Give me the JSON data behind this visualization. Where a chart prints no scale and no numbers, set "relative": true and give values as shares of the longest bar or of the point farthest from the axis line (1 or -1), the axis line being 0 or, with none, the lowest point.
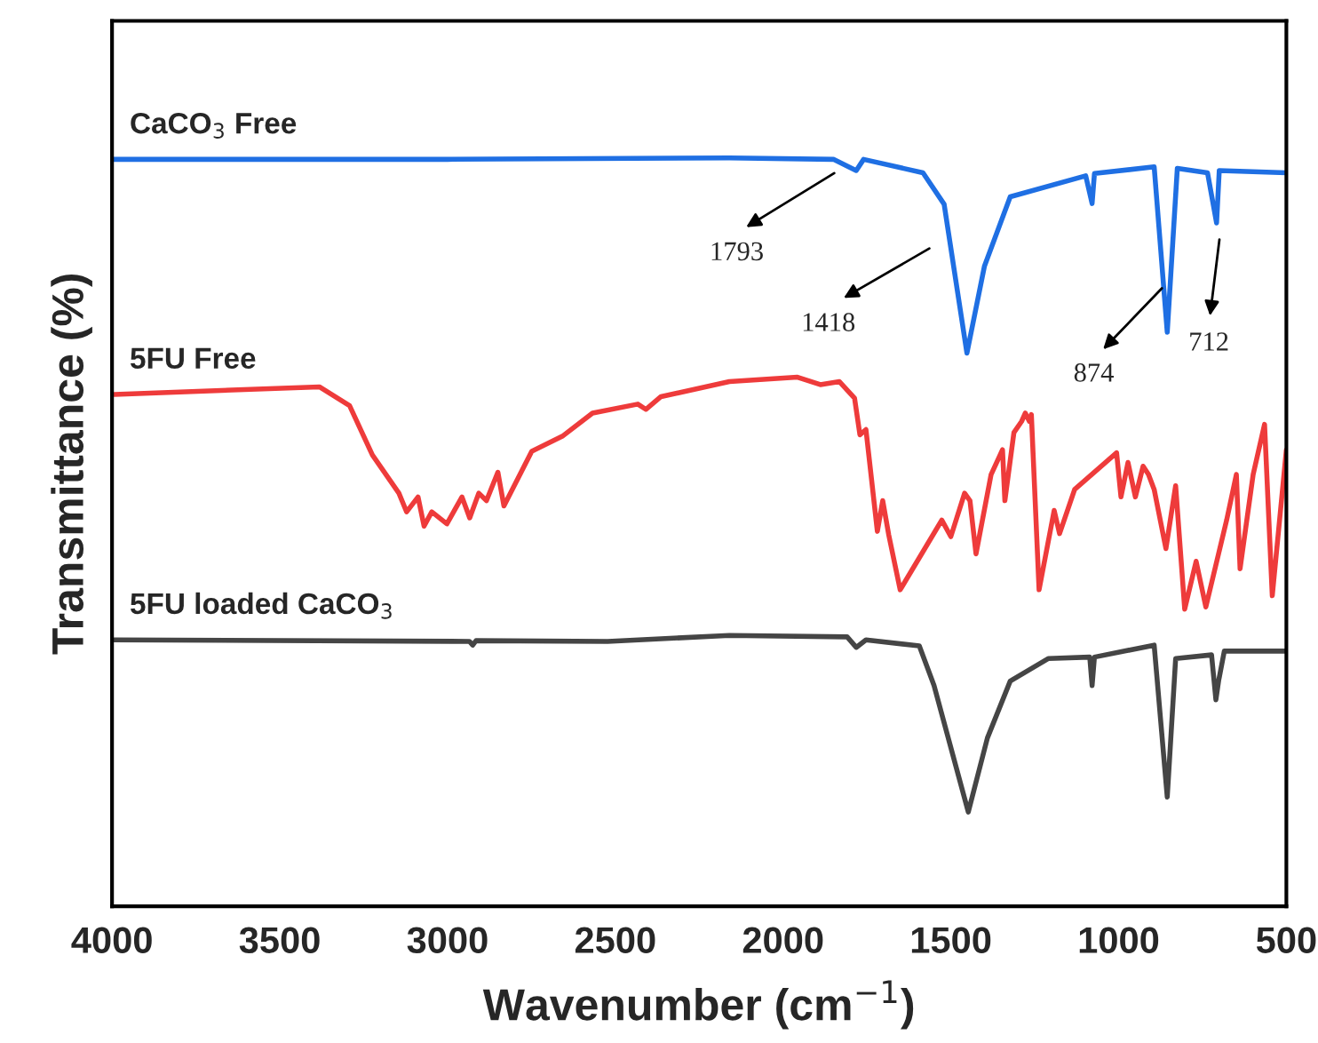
{
  "chart_data": {
    "type": "line",
    "relative": true,
    "xlabel": "Wavenumber (cm$^{−1}$)",
    "ylabel": "Transmittance (%)",
    "xlim": [
      4000,
      500
    ],
    "xticks": [
      4000,
      3500,
      3000,
      2500,
      2000,
      1500,
      1000,
      500
    ],
    "grid": false,
    "legend": false,
    "marker": "none",
    "line_style": "solid",
    "series": [
      {
        "name": "CaCO$_{3}$ Free",
        "color": "#1f6fe3",
        "x": [
          4000,
          3000,
          2160,
          1850,
          1782,
          1760,
          1583,
          1520,
          1452,
          1400,
          1323,
          1098,
          1079,
          1072,
          894,
          855,
          825,
          735,
          708,
          700,
          500
        ],
        "values": [
          0.998,
          0.998,
          1.0,
          0.998,
          0.983,
          0.998,
          0.98,
          0.938,
          0.739,
          0.855,
          0.948,
          0.976,
          0.939,
          0.979,
          0.988,
          0.767,
          0.986,
          0.98,
          0.913,
          0.983,
          0.98
        ]
      },
      {
        "name": "5FU Free",
        "color": "#ee3b3b",
        "x": [
          3993,
          3382,
          3292,
          3224,
          3145,
          3122,
          3088,
          3070,
          3047,
          3002,
          2957,
          2934,
          2907,
          2884,
          2850,
          2832,
          2749,
          2658,
          2568,
          2433,
          2409,
          2364,
          2160,
          1957,
          1889,
          1832,
          1787,
          1771,
          1753,
          1719,
          1703,
          1685,
          1651,
          1527,
          1500,
          1459,
          1443,
          1425,
          1380,
          1346,
          1339,
          1312,
          1289,
          1278,
          1266,
          1260,
          1237,
          1192,
          1176,
          1131,
          1006,
          993,
          972,
          950,
          927,
          911,
          894,
          859,
          830,
          803,
          769,
          740,
          678,
          649,
          638,
          599,
          565,
          542,
          500
        ],
        "values": [
          0.684,
          0.694,
          0.669,
          0.603,
          0.552,
          0.527,
          0.547,
          0.508,
          0.527,
          0.511,
          0.547,
          0.519,
          0.552,
          0.542,
          0.58,
          0.535,
          0.608,
          0.628,
          0.659,
          0.671,
          0.664,
          0.681,
          0.701,
          0.707,
          0.697,
          0.701,
          0.679,
          0.63,
          0.637,
          0.501,
          0.542,
          0.496,
          0.423,
          0.516,
          0.494,
          0.552,
          0.542,
          0.471,
          0.577,
          0.61,
          0.542,
          0.633,
          0.648,
          0.659,
          0.648,
          0.657,
          0.423,
          0.529,
          0.498,
          0.557,
          0.606,
          0.547,
          0.593,
          0.547,
          0.588,
          0.577,
          0.557,
          0.478,
          0.562,
          0.397,
          0.461,
          0.4,
          0.516,
          0.577,
          0.451,
          0.577,
          0.644,
          0.415,
          0.61
        ]
      },
      {
        "name": "5FU loaded CaCO$_{3}$",
        "color": "#454545",
        "x": [
          3993,
          2935,
          2925,
          2915,
          2523,
          2160,
          1809,
          1782,
          1753,
          1594,
          1550,
          1448,
          1391,
          1323,
          1210,
          1086,
          1079,
          1072,
          894,
          855,
          830,
          723,
          710,
          702,
          685,
          500
        ],
        "values": [
          0.356,
          0.354,
          0.349,
          0.355,
          0.354,
          0.362,
          0.36,
          0.346,
          0.356,
          0.348,
          0.295,
          0.126,
          0.225,
          0.301,
          0.331,
          0.333,
          0.295,
          0.333,
          0.349,
          0.146,
          0.331,
          0.336,
          0.276,
          0.301,
          0.341,
          0.341
        ]
      }
    ],
    "annotations": [
      "1793",
      "1418",
      "874",
      "712"
    ]
  }
}
